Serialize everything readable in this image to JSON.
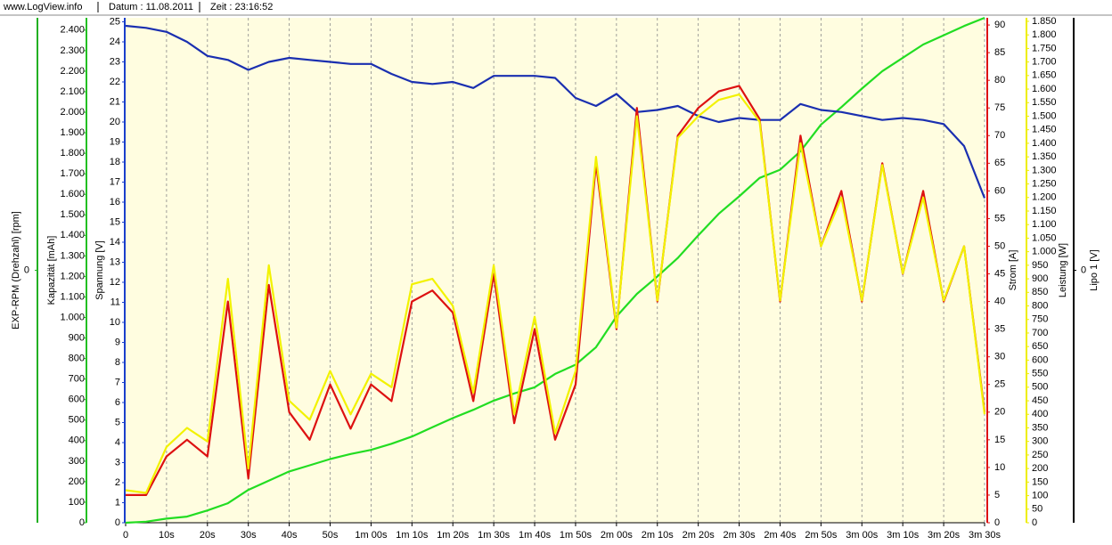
{
  "header": {
    "site": "www.LogView.info",
    "date": "Datum : 11.08.2011",
    "time": "Zeit : 23:16:52"
  },
  "chart_data": {
    "type": "line",
    "x": [
      0,
      5,
      10,
      15,
      20,
      25,
      30,
      35,
      40,
      45,
      50,
      55,
      60,
      65,
      70,
      75,
      80,
      85,
      90,
      95,
      100,
      105,
      110,
      115,
      120,
      125,
      130,
      135,
      140,
      145,
      150,
      155,
      160,
      165,
      170,
      175,
      180,
      185,
      190,
      195,
      200,
      205,
      210
    ],
    "xlim": [
      0,
      210
    ],
    "xticks": [
      0,
      {
        "value": 10,
        "label": "10s"
      },
      {
        "value": 20,
        "label": "20s"
      },
      {
        "value": 30,
        "label": "30s"
      },
      {
        "value": 40,
        "label": "40s"
      },
      {
        "value": 50,
        "label": "50s"
      },
      {
        "value": 60,
        "label": "1m 00s"
      },
      {
        "value": 70,
        "label": "1m 10s"
      },
      {
        "value": 80,
        "label": "1m 20s"
      },
      {
        "value": 90,
        "label": "1m 30s"
      },
      {
        "value": 100,
        "label": "1m 40s"
      },
      {
        "value": 110,
        "label": "1m 50s"
      },
      {
        "value": 120,
        "label": "2m 00s"
      },
      {
        "value": 130,
        "label": "2m 10s"
      },
      {
        "value": 140,
        "label": "2m 20s"
      },
      {
        "value": 150,
        "label": "2m 30s"
      },
      {
        "value": 160,
        "label": "2m 40s"
      },
      {
        "value": 170,
        "label": "2m 50s"
      },
      {
        "value": 180,
        "label": "3m 00s"
      },
      {
        "value": 190,
        "label": "3m 10s"
      },
      {
        "value": 200,
        "label": "3m 20s"
      },
      {
        "value": 210,
        "label": "3m 30s"
      }
    ],
    "grid": true,
    "axes": [
      {
        "label": "EXP-RPM (Drehzahl) [rpm]",
        "color": "#22b022",
        "side": "left",
        "ylim": [
          -1,
          1
        ],
        "yticks": [
          0
        ]
      },
      {
        "label": "Kapazität [mAh]",
        "color": "#22c022",
        "side": "left",
        "ylim": [
          0,
          2460
        ],
        "yticks": [
          0,
          100,
          200,
          300,
          400,
          500,
          600,
          700,
          800,
          900,
          {
            "value": 1000,
            "label": "1.000"
          },
          {
            "value": 1100,
            "label": "1.100"
          },
          {
            "value": 1200,
            "label": "1.200"
          },
          {
            "value": 1300,
            "label": "1.300"
          },
          {
            "value": 1400,
            "label": "1.400"
          },
          {
            "value": 1500,
            "label": "1.500"
          },
          {
            "value": 1600,
            "label": "1.600"
          },
          {
            "value": 1700,
            "label": "1.700"
          },
          {
            "value": 1800,
            "label": "1.800"
          },
          {
            "value": 1900,
            "label": "1.900"
          },
          {
            "value": 2000,
            "label": "2.000"
          },
          {
            "value": 2100,
            "label": "2.100"
          },
          {
            "value": 2200,
            "label": "2.200"
          },
          {
            "value": 2300,
            "label": "2.300"
          },
          {
            "value": 2400,
            "label": "2.400"
          }
        ]
      },
      {
        "label": "Spannung [V]",
        "color": "#1a3fcc",
        "side": "left",
        "ylim": [
          0,
          25.2
        ],
        "yticks": [
          0,
          1,
          2,
          3,
          4,
          5,
          6,
          7,
          8,
          9,
          10,
          11,
          12,
          13,
          14,
          15,
          16,
          17,
          18,
          19,
          20,
          21,
          22,
          23,
          24,
          25
        ]
      },
      {
        "label": "Strom [A]",
        "color": "#dd1111",
        "side": "right",
        "ylim": [
          0,
          91.3
        ],
        "yticks": [
          0,
          5,
          10,
          15,
          20,
          25,
          30,
          35,
          40,
          45,
          50,
          55,
          60,
          65,
          70,
          75,
          80,
          85,
          90
        ]
      },
      {
        "label": "Leistung [W]",
        "color": "#eeee00",
        "side": "right",
        "ylim": [
          0,
          1863
        ],
        "yticks": [
          0,
          50,
          100,
          150,
          200,
          250,
          300,
          350,
          400,
          450,
          500,
          550,
          600,
          650,
          700,
          750,
          800,
          850,
          900,
          950,
          {
            "value": 1000,
            "label": "1.000"
          },
          {
            "value": 1050,
            "label": "1.050"
          },
          {
            "value": 1100,
            "label": "1.100"
          },
          {
            "value": 1150,
            "label": "1.150"
          },
          {
            "value": 1200,
            "label": "1.200"
          },
          {
            "value": 1250,
            "label": "1.250"
          },
          {
            "value": 1300,
            "label": "1.300"
          },
          {
            "value": 1350,
            "label": "1.350"
          },
          {
            "value": 1400,
            "label": "1.400"
          },
          {
            "value": 1450,
            "label": "1.450"
          },
          {
            "value": 1500,
            "label": "1.500"
          },
          {
            "value": 1550,
            "label": "1.550"
          },
          {
            "value": 1600,
            "label": "1.600"
          },
          {
            "value": 1650,
            "label": "1.650"
          },
          {
            "value": 1700,
            "label": "1.700"
          },
          {
            "value": 1750,
            "label": "1.750"
          },
          {
            "value": 1800,
            "label": "1.800"
          },
          {
            "value": 1850,
            "label": "1.850"
          }
        ]
      },
      {
        "label": "Lipo 1 [V]",
        "color": "#000000",
        "side": "right",
        "ylim": [
          -1,
          1
        ],
        "yticks": [
          0
        ]
      }
    ],
    "series": [
      {
        "name": "Kapazität [mAh]",
        "axis": 1,
        "color": "#22dd22",
        "values": [
          0,
          5,
          20,
          30,
          60,
          95,
          160,
          205,
          250,
          280,
          310,
          335,
          355,
          385,
          420,
          465,
          510,
          550,
          595,
          630,
          660,
          725,
          770,
          855,
          1005,
          1115,
          1200,
          1290,
          1400,
          1505,
          1590,
          1680,
          1720,
          1810,
          1940,
          2025,
          2115,
          2200,
          2265,
          2330,
          2375,
          2420,
          2460
        ]
      },
      {
        "name": "Spannung [V]",
        "axis": 2,
        "color": "#1a2fb0",
        "values": [
          24.8,
          24.7,
          24.5,
          24.0,
          23.3,
          23.1,
          22.6,
          23.0,
          23.2,
          23.1,
          23.0,
          22.9,
          22.9,
          22.4,
          22.0,
          21.9,
          22.0,
          21.7,
          22.3,
          22.3,
          22.3,
          22.2,
          21.2,
          20.8,
          21.4,
          20.5,
          20.6,
          20.8,
          20.3,
          20.0,
          20.2,
          20.1,
          20.1,
          20.9,
          20.6,
          20.5,
          20.3,
          20.1,
          20.2,
          20.1,
          19.9,
          18.8,
          16.2
        ]
      },
      {
        "name": "Strom [A]",
        "axis": 3,
        "color": "#dd1111",
        "values": [
          5,
          5,
          12,
          15,
          12,
          40,
          8,
          43,
          20,
          15,
          25,
          17,
          25,
          22,
          40,
          42,
          38,
          22,
          45,
          18,
          35,
          15,
          25,
          65,
          35,
          75,
          40,
          70,
          75,
          78,
          79,
          73,
          40,
          70,
          50,
          60,
          40,
          65,
          45,
          60,
          40,
          50,
          20
        ]
      },
      {
        "name": "Leistung [W]",
        "axis": 4,
        "color": "#f2f200",
        "values": [
          120,
          110,
          280,
          350,
          300,
          900,
          200,
          950,
          450,
          380,
          560,
          400,
          550,
          500,
          880,
          900,
          800,
          480,
          950,
          400,
          760,
          330,
          560,
          1350,
          720,
          1500,
          820,
          1420,
          1500,
          1560,
          1580,
          1480,
          820,
          1400,
          1020,
          1200,
          820,
          1320,
          920,
          1200,
          820,
          1020,
          400
        ]
      }
    ]
  }
}
